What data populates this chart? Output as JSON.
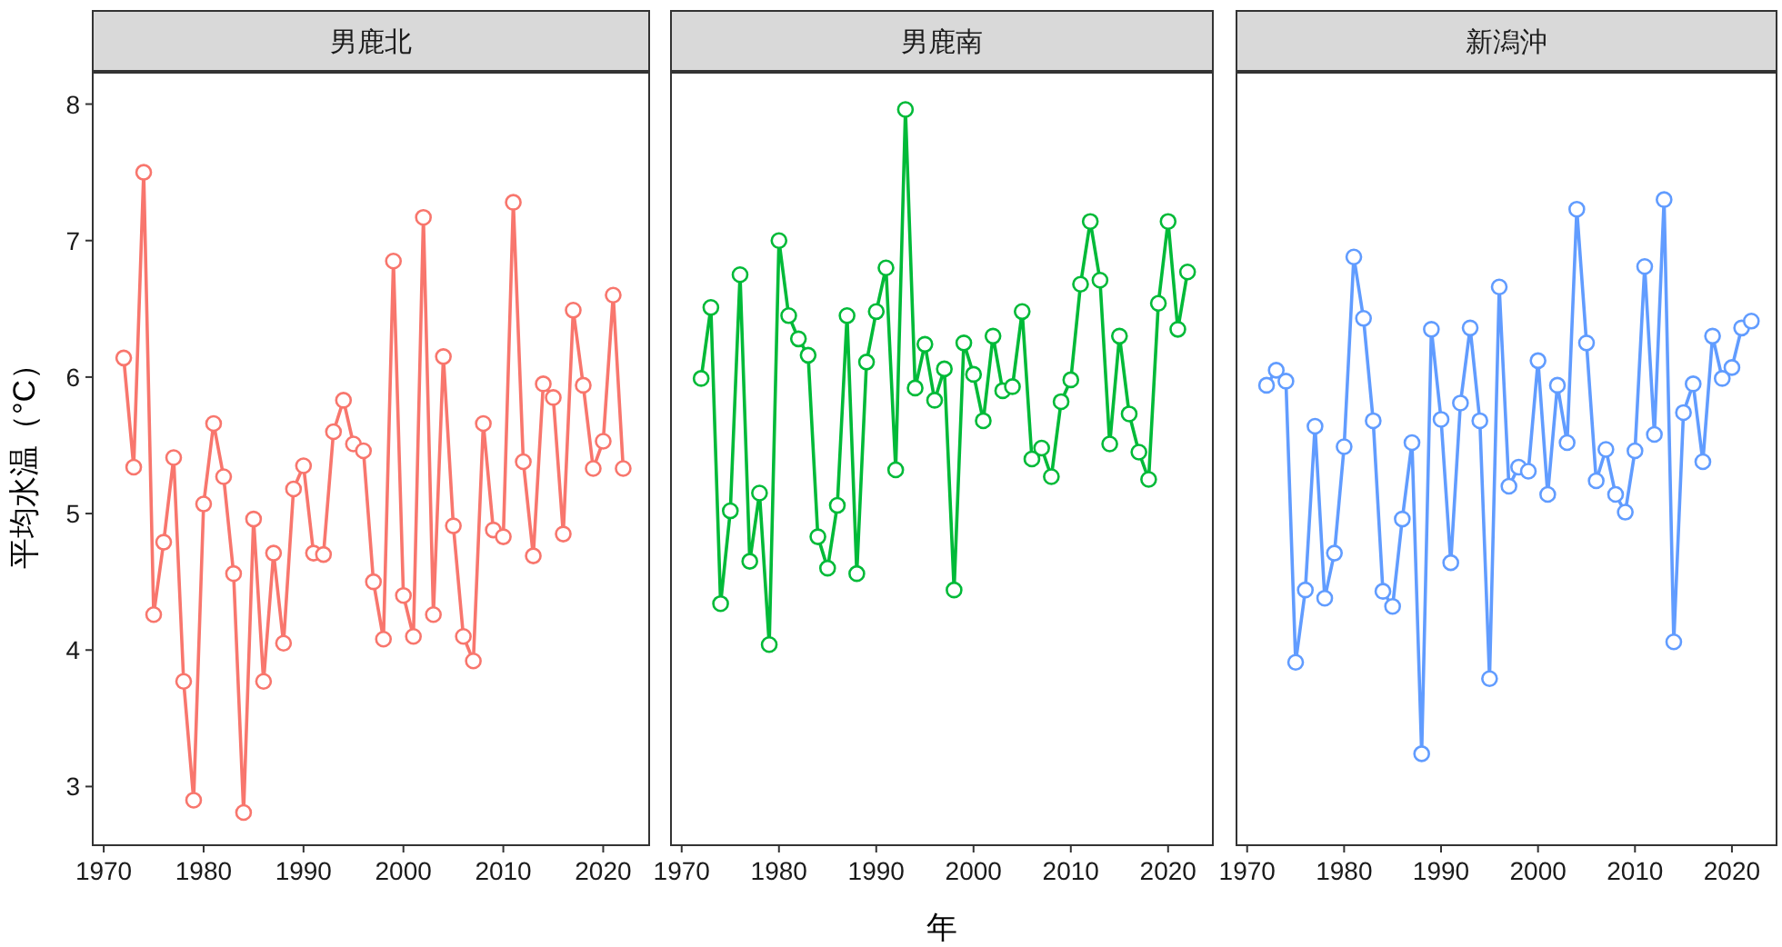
{
  "chart_data": [
    {
      "type": "line",
      "title": "男鹿北",
      "ylabel": "平均水温（°C）",
      "marker": "circle",
      "grid": false,
      "x": [
        1972,
        1973,
        1974,
        1975,
        1976,
        1977,
        1978,
        1979,
        1980,
        1981,
        1982,
        1983,
        1984,
        1985,
        1986,
        1987,
        1988,
        1989,
        1990,
        1991,
        1992,
        1993,
        1994,
        1995,
        1996,
        1997,
        1998,
        1999,
        2000,
        2001,
        2002,
        2003,
        2004,
        2005,
        2006,
        2007,
        2008,
        2009,
        2010,
        2011,
        2012,
        2013,
        2014,
        2015,
        2016,
        2017,
        2018,
        2019,
        2020,
        2021,
        2022
      ],
      "series": [
        {
          "color": "#f8766d",
          "values": [
            6.14,
            5.34,
            7.5,
            4.26,
            4.79,
            5.41,
            3.77,
            2.9,
            5.07,
            5.66,
            5.27,
            4.56,
            2.81,
            4.96,
            3.77,
            4.71,
            4.05,
            5.18,
            5.35,
            4.71,
            4.7,
            5.6,
            5.83,
            5.51,
            5.46,
            4.5,
            4.08,
            6.85,
            4.4,
            4.1,
            7.17,
            4.26,
            6.15,
            4.91,
            4.1,
            3.92,
            5.66,
            4.88,
            4.83,
            7.28,
            5.38,
            4.69,
            5.95,
            5.85,
            4.85,
            6.49,
            5.94,
            5.33,
            5.53,
            6.6,
            5.33
          ]
        }
      ],
      "xlim": [
        1968.9,
        2024.6
      ],
      "xticks": [
        1970,
        1980,
        1990,
        2000,
        2010,
        2020
      ],
      "ylim": [
        2.57,
        8.23
      ],
      "yticks": [
        3,
        4,
        5,
        6,
        7,
        8
      ]
    },
    {
      "type": "line",
      "title": "男鹿南",
      "xlabel": "年",
      "marker": "circle",
      "grid": false,
      "tick_labels": "x",
      "x": [
        1972,
        1973,
        1974,
        1975,
        1976,
        1977,
        1978,
        1979,
        1980,
        1981,
        1982,
        1983,
        1984,
        1985,
        1986,
        1987,
        1988,
        1989,
        1990,
        1991,
        1992,
        1993,
        1994,
        1995,
        1996,
        1997,
        1998,
        1999,
        2000,
        2001,
        2002,
        2003,
        2004,
        2005,
        2006,
        2007,
        2008,
        2009,
        2010,
        2011,
        2012,
        2013,
        2014,
        2015,
        2016,
        2017,
        2018,
        2019,
        2020,
        2021,
        2022
      ],
      "series": [
        {
          "color": "#00ba38",
          "values": [
            5.99,
            6.51,
            4.34,
            5.02,
            6.75,
            4.65,
            5.15,
            4.04,
            7.0,
            6.45,
            6.28,
            6.16,
            4.83,
            4.6,
            5.06,
            6.45,
            4.56,
            6.11,
            6.48,
            6.8,
            5.32,
            7.96,
            5.92,
            6.24,
            5.83,
            6.06,
            4.44,
            6.25,
            6.02,
            5.68,
            6.3,
            5.9,
            5.93,
            6.48,
            5.4,
            5.48,
            5.27,
            5.82,
            5.98,
            6.68,
            7.14,
            6.71,
            5.51,
            6.3,
            5.73,
            5.45,
            5.25,
            6.54,
            7.14,
            6.35,
            6.77
          ]
        }
      ],
      "xlim": [
        1968.9,
        2024.6
      ],
      "xticks": [
        1970,
        1980,
        1990,
        2000,
        2010,
        2020
      ],
      "ylim": [
        2.57,
        8.23
      ],
      "yticks": [
        3,
        4,
        5,
        6,
        7,
        8
      ]
    },
    {
      "type": "line",
      "title": "新潟沖",
      "marker": "circle",
      "grid": false,
      "tick_labels": "x",
      "x": [
        1972,
        1973,
        1974,
        1975,
        1976,
        1977,
        1978,
        1979,
        1980,
        1981,
        1982,
        1983,
        1984,
        1985,
        1986,
        1987,
        1988,
        1989,
        1990,
        1991,
        1992,
        1993,
        1994,
        1995,
        1996,
        1997,
        1998,
        1999,
        2000,
        2001,
        2002,
        2003,
        2004,
        2005,
        2006,
        2007,
        2008,
        2009,
        2010,
        2011,
        2012,
        2013,
        2014,
        2015,
        2016,
        2017,
        2018,
        2019,
        2020,
        2021,
        2022
      ],
      "series": [
        {
          "color": "#619cff",
          "values": [
            5.94,
            6.05,
            5.97,
            3.91,
            4.44,
            5.64,
            4.38,
            4.71,
            5.49,
            6.88,
            6.43,
            5.68,
            4.43,
            4.32,
            4.96,
            5.52,
            3.24,
            6.35,
            5.69,
            4.64,
            5.81,
            6.36,
            5.68,
            3.79,
            6.66,
            5.2,
            5.34,
            5.31,
            6.12,
            5.14,
            5.94,
            5.52,
            7.23,
            6.25,
            5.24,
            5.47,
            5.14,
            5.01,
            5.46,
            6.81,
            5.58,
            7.3,
            4.06,
            5.74,
            5.95,
            5.38,
            6.3,
            5.99,
            6.07,
            6.36,
            6.41
          ]
        }
      ],
      "xlim": [
        1968.9,
        2024.6
      ],
      "xticks": [
        1970,
        1980,
        1990,
        2000,
        2010,
        2020
      ],
      "ylim": [
        2.57,
        8.23
      ],
      "yticks": [
        3,
        4,
        5,
        6,
        7,
        8
      ]
    }
  ]
}
